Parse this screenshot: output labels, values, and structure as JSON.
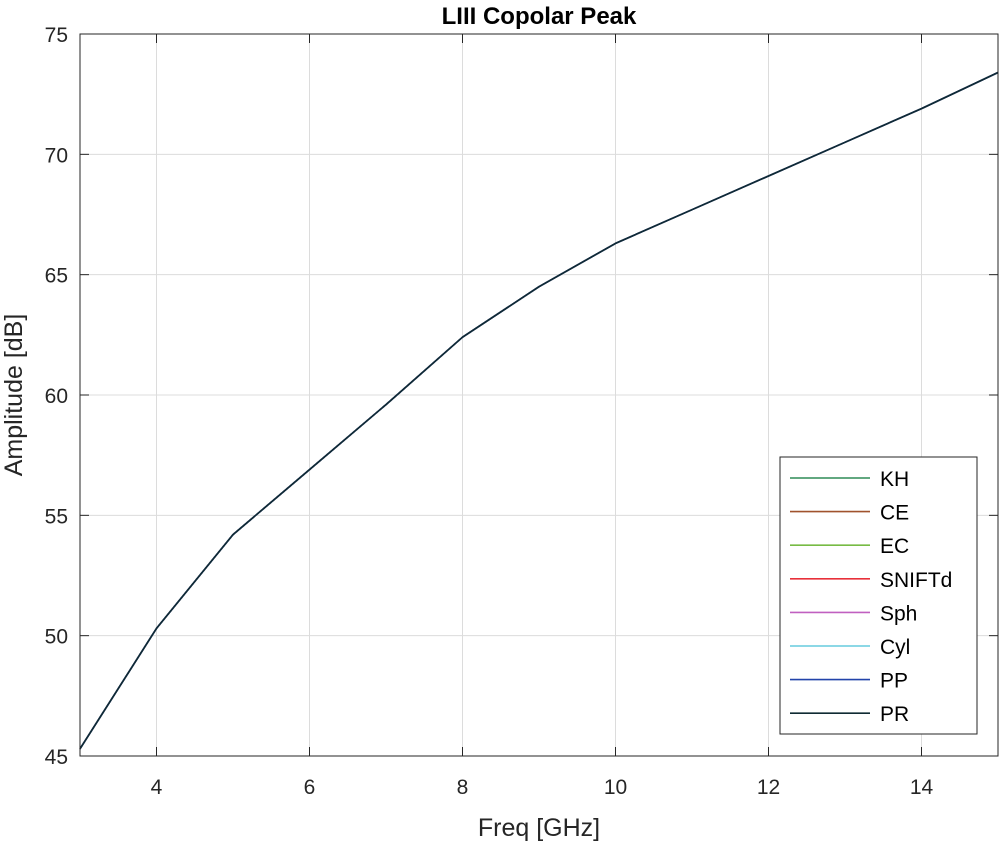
{
  "chart_data": {
    "type": "line",
    "title": "LIII Copolar Peak",
    "xlabel": "Freq [GHz]",
    "ylabel": "Amplitude [dB]",
    "xlim": [
      3,
      15
    ],
    "ylim": [
      45,
      75
    ],
    "xticks": [
      4,
      6,
      8,
      10,
      12,
      14
    ],
    "yticks": [
      45,
      50,
      55,
      60,
      65,
      70,
      75
    ],
    "grid": true,
    "legend_position": "lower-right",
    "x": [
      3,
      4,
      5,
      6,
      7,
      8,
      9,
      10,
      11,
      12,
      13,
      14,
      15
    ],
    "series": [
      {
        "name": "KH",
        "color": "#2e8b57",
        "values": [
          45.3,
          50.3,
          54.2,
          56.9,
          59.6,
          62.4,
          64.5,
          66.3,
          67.7,
          69.1,
          70.5,
          71.9,
          73.4
        ]
      },
      {
        "name": "CE",
        "color": "#a0522d",
        "values": [
          45.3,
          50.3,
          54.2,
          56.9,
          59.6,
          62.4,
          64.5,
          66.3,
          67.7,
          69.1,
          70.5,
          71.9,
          73.4
        ]
      },
      {
        "name": "EC",
        "color": "#77bb44",
        "values": [
          45.3,
          50.3,
          54.2,
          56.9,
          59.6,
          62.4,
          64.5,
          66.3,
          67.7,
          69.1,
          70.5,
          71.9,
          73.4
        ]
      },
      {
        "name": "SNIFTd",
        "color": "#e8303a",
        "values": [
          45.3,
          50.3,
          54.2,
          56.9,
          59.6,
          62.4,
          64.5,
          66.3,
          67.7,
          69.1,
          70.5,
          71.9,
          73.4
        ]
      },
      {
        "name": "Sph",
        "color": "#c060c0",
        "values": [
          45.3,
          50.3,
          54.2,
          56.9,
          59.6,
          62.4,
          64.5,
          66.3,
          67.7,
          69.1,
          70.5,
          71.9,
          73.4
        ]
      },
      {
        "name": "Cyl",
        "color": "#66ccdd",
        "values": [
          45.3,
          50.3,
          54.2,
          56.9,
          59.6,
          62.4,
          64.5,
          66.3,
          67.7,
          69.1,
          70.5,
          71.9,
          73.4
        ]
      },
      {
        "name": "PP",
        "color": "#2244aa",
        "values": [
          45.3,
          50.3,
          54.2,
          56.9,
          59.6,
          62.4,
          64.5,
          66.3,
          67.7,
          69.1,
          70.5,
          71.9,
          73.4
        ]
      },
      {
        "name": "PR",
        "color": "#0f2a33",
        "values": [
          45.3,
          50.3,
          54.2,
          56.9,
          59.6,
          62.4,
          64.5,
          66.3,
          67.7,
          69.1,
          70.5,
          71.9,
          73.4
        ]
      }
    ]
  }
}
